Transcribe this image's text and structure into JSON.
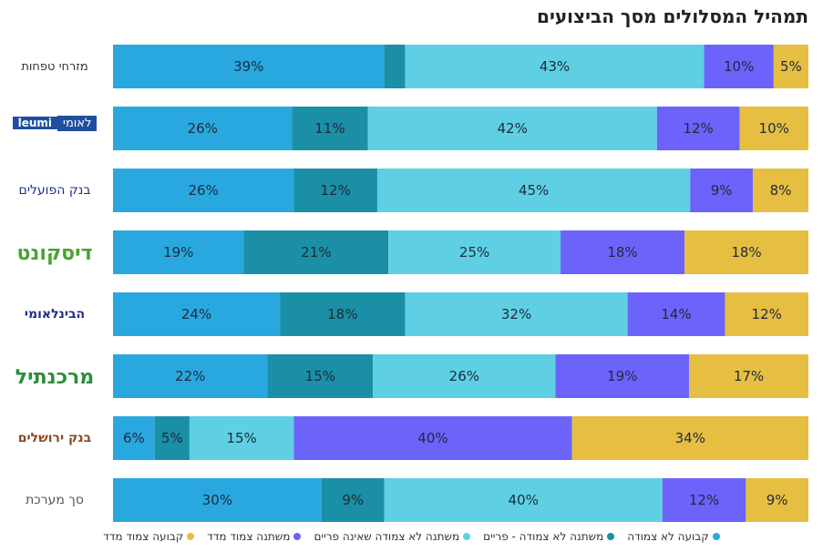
{
  "page_title": "תמהיל המסלולים מסך הביצועים",
  "colors": {
    "fixed_unlinked": "#29A8E0",
    "variable_unlinked_prime": "#1A8FA6",
    "variable_unlinked_nonprime": "#5FD0E4",
    "variable_linked": "#6B63FA",
    "fixed_linked": "#E6BE42"
  },
  "banks": [
    {
      "name": "מזרחי טפחות",
      "logo": "mizrahi-logo",
      "logo_text": "מזרחי טפחות"
    },
    {
      "name": "לאומי",
      "logo": "leumi-logo",
      "logo_text": "לאומי",
      "logo_sub": "leumi"
    },
    {
      "name": "בנק הפועלים",
      "logo": "hapoalim-logo",
      "logo_text": "בנק הפועלים"
    },
    {
      "name": "דיסקונט",
      "logo": "discount-logo",
      "logo_text": "דיסקונט"
    },
    {
      "name": "הבינלאומי",
      "logo": "beinleumi-logo",
      "logo_text": "הבינלאומי"
    },
    {
      "name": "מרכנתיל",
      "logo": "mercantile-logo",
      "logo_text": "מרכנתיל"
    },
    {
      "name": "בנק ירושלים",
      "logo": "jerusalem-logo",
      "logo_text": "בנק ירושלים"
    },
    {
      "name": "סך מערכת",
      "logo": null,
      "logo_text": "סך מערכת"
    }
  ],
  "chart_data": {
    "type": "bar",
    "orientation": "horizontal",
    "stacked": true,
    "normalized": true,
    "title": "תמהיל המסלולים מסך הביצועים",
    "categories": [
      "מזרחי טפחות",
      "לאומי",
      "בנק הפועלים",
      "דיסקונט",
      "הבינלאומי",
      "מרכנתיל",
      "בנק ירושלים",
      "סך מערכת"
    ],
    "series": [
      {
        "name": "קבועה לא צמודה",
        "color": "#29A8E0",
        "values": [
          39,
          26,
          26,
          19,
          24,
          22,
          6,
          30
        ],
        "labels": [
          "39%",
          "26%",
          "26%",
          "19%",
          "24%",
          "22%",
          "6%",
          "30%"
        ]
      },
      {
        "name": "משתנה לא צמודה - פריים",
        "color": "#1A8FA6",
        "values": [
          3,
          11,
          12,
          21,
          18,
          15,
          5,
          9
        ],
        "labels": [
          "",
          "11%",
          "12%",
          "21%",
          "18%",
          "15%",
          "5%",
          "9%"
        ]
      },
      {
        "name": "משתנה לא צמודה שאינה פריים",
        "color": "#5FD0E4",
        "values": [
          43,
          42,
          45,
          25,
          32,
          26,
          15,
          40
        ],
        "labels": [
          "43%",
          "42%",
          "45%",
          "25%",
          "32%",
          "26%",
          "15%",
          "40%"
        ]
      },
      {
        "name": "משתנה צמוד מדד",
        "color": "#6B63FA",
        "values": [
          10,
          12,
          9,
          18,
          14,
          19,
          40,
          12
        ],
        "labels": [
          "10%",
          "12%",
          "9%",
          "18%",
          "14%",
          "19%",
          "40%",
          "12%"
        ]
      },
      {
        "name": "קבועה צמוד מדד",
        "color": "#E6BE42",
        "values": [
          5,
          10,
          8,
          18,
          12,
          17,
          34,
          9
        ],
        "labels": [
          "5%",
          "10%",
          "8%",
          "18%",
          "12%",
          "17%",
          "34%",
          "9%"
        ]
      }
    ],
    "legend_position": "bottom",
    "grid": false
  }
}
